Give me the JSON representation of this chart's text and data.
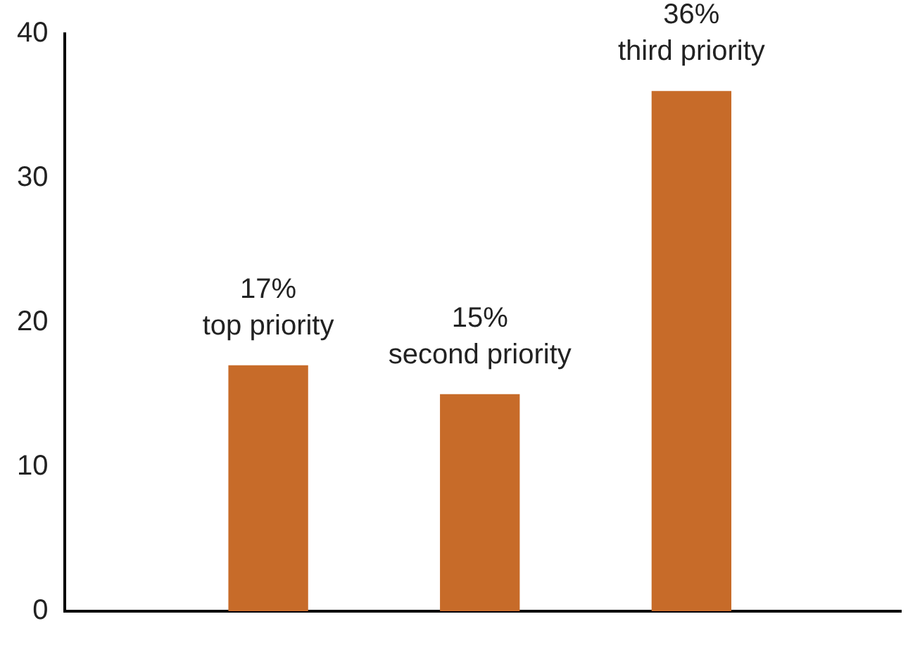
{
  "chart_data": {
    "type": "bar",
    "categories": [
      null,
      null,
      null
    ],
    "values": [
      17,
      15,
      36
    ],
    "value_labels": [
      "17%\ntop priority",
      "15%\nsecond priority",
      "36%\nthird priority"
    ],
    "color": "#c76b29",
    "ylim": [
      0,
      40
    ],
    "yticks": [
      0,
      10,
      20,
      30,
      40
    ],
    "grid": false,
    "legend": false,
    "tick_labels": "y"
  }
}
